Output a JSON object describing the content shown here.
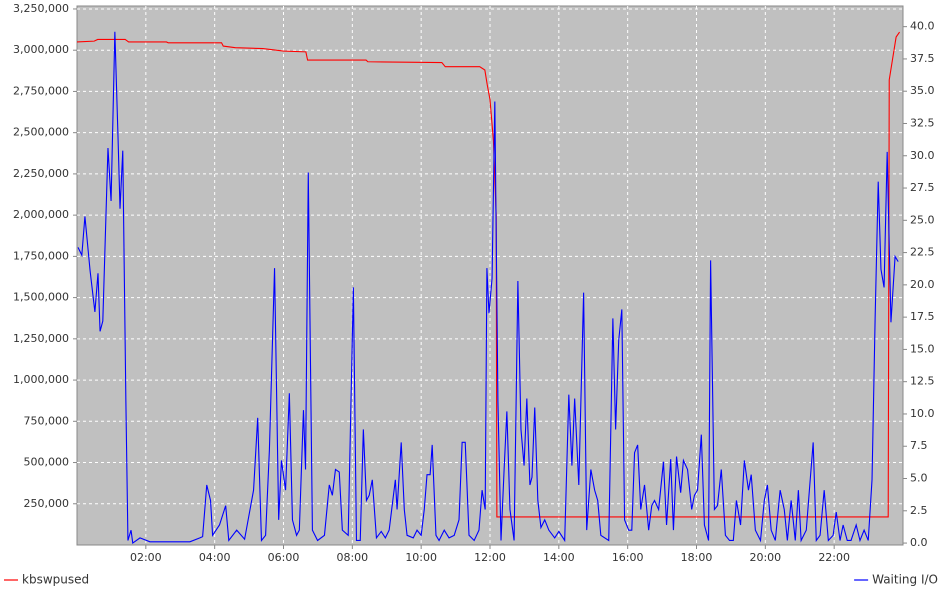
{
  "chart_data": {
    "type": "line",
    "legend": "bottom",
    "grid": true,
    "background": "#c0c0c0",
    "xlim": [
      0,
      24
    ],
    "xticks": [
      {
        "value": 2,
        "label": "02:00"
      },
      {
        "value": 4,
        "label": "04:00"
      },
      {
        "value": 6,
        "label": "06:00"
      },
      {
        "value": 8,
        "label": "08:00"
      },
      {
        "value": 10,
        "label": "10:00"
      },
      {
        "value": 12,
        "label": "12:00"
      },
      {
        "value": 14,
        "label": "14:00"
      },
      {
        "value": 16,
        "label": "16:00"
      },
      {
        "value": 18,
        "label": "18:00"
      },
      {
        "value": 20,
        "label": "20:00"
      },
      {
        "value": 22,
        "label": "22:00"
      }
    ],
    "ylim": [
      0,
      3268000
    ],
    "yticks": [
      {
        "value": 250000,
        "label": "250,000"
      },
      {
        "value": 500000,
        "label": "500,000"
      },
      {
        "value": 750000,
        "label": "750,000"
      },
      {
        "value": 1000000,
        "label": "1,000,000"
      },
      {
        "value": 1250000,
        "label": "1,250,000"
      },
      {
        "value": 1500000,
        "label": "1,500,000"
      },
      {
        "value": 1750000,
        "label": "1,750,000"
      },
      {
        "value": 2000000,
        "label": "2,000,000"
      },
      {
        "value": 2250000,
        "label": "2,250,000"
      },
      {
        "value": 2500000,
        "label": "2,500,000"
      },
      {
        "value": 2750000,
        "label": "2,750,000"
      },
      {
        "value": 3000000,
        "label": "3,000,000"
      },
      {
        "value": 3250000,
        "label": "3,250,000"
      }
    ],
    "y2lim": [
      -0.15,
      41.6
    ],
    "y2ticks": [
      {
        "value": 0,
        "label": "0.0"
      },
      {
        "value": 2.5,
        "label": "2.5"
      },
      {
        "value": 5,
        "label": "5.0"
      },
      {
        "value": 7.5,
        "label": "7.5"
      },
      {
        "value": 10,
        "label": "10.0"
      },
      {
        "value": 12.5,
        "label": "12.5"
      },
      {
        "value": 15,
        "label": "15.0"
      },
      {
        "value": 17.5,
        "label": "17.5"
      },
      {
        "value": 20,
        "label": "20.0"
      },
      {
        "value": 22.5,
        "label": "22.5"
      },
      {
        "value": 25,
        "label": "25.0"
      },
      {
        "value": 27.5,
        "label": "27.5"
      },
      {
        "value": 30,
        "label": "30.0"
      },
      {
        "value": 32.5,
        "label": "32.5"
      },
      {
        "value": 35,
        "label": "35.0"
      },
      {
        "value": 37.5,
        "label": "37.5"
      },
      {
        "value": 40,
        "label": "40.0"
      }
    ],
    "series": [
      {
        "name": "kbswpused",
        "color": "#ff0000",
        "x": [
          0.0,
          0.5,
          0.6,
          1.4,
          1.5,
          2.6,
          2.65,
          4.2,
          4.25,
          4.6,
          5.4,
          6.0,
          6.65,
          6.7,
          8.4,
          8.45,
          10.6,
          10.7,
          11.7,
          11.85,
          11.92,
          12.0,
          12.1,
          12.18,
          12.2,
          23.57,
          23.6,
          23.7,
          23.8,
          23.9
        ],
        "values": [
          3050000,
          3055000,
          3065000,
          3065000,
          3050000,
          3050000,
          3045000,
          3045000,
          3025000,
          3015000,
          3010000,
          2995000,
          2990000,
          2940000,
          2940000,
          2930000,
          2925000,
          2900000,
          2900000,
          2880000,
          2790000,
          2700000,
          2450000,
          2000000,
          170000,
          170000,
          2820000,
          2950000,
          3080000,
          3110000
        ]
      },
      {
        "name": "Waiting I/O",
        "color": "#0000ff",
        "axis": "y2",
        "x": [
          0.03,
          0.14,
          0.23,
          0.38,
          0.52,
          0.61,
          0.67,
          0.75,
          0.9,
          0.99,
          1.1,
          1.19,
          1.25,
          1.33,
          1.42,
          1.48,
          1.57,
          1.62,
          1.83,
          2.12,
          2.7,
          3.28,
          3.57,
          3.65,
          3.77,
          3.88,
          3.94,
          4.14,
          4.32,
          4.41,
          4.64,
          4.87,
          5.13,
          5.25,
          5.36,
          5.48,
          5.59,
          5.74,
          5.86,
          5.94,
          6.06,
          6.17,
          6.26,
          6.38,
          6.46,
          6.58,
          6.64,
          6.72,
          6.84,
          6.99,
          7.19,
          7.33,
          7.42,
          7.51,
          7.62,
          7.71,
          7.88,
          8.03,
          8.12,
          8.23,
          8.32,
          8.41,
          8.49,
          8.58,
          8.7,
          8.84,
          8.96,
          9.07,
          9.25,
          9.3,
          9.42,
          9.51,
          9.59,
          9.77,
          9.88,
          10.0,
          10.09,
          10.17,
          10.26,
          10.32,
          10.43,
          10.52,
          10.67,
          10.81,
          10.96,
          11.1,
          11.19,
          11.28,
          11.39,
          11.54,
          11.68,
          11.77,
          11.86,
          11.91,
          11.97,
          12.06,
          12.14,
          12.23,
          12.32,
          12.41,
          12.49,
          12.58,
          12.7,
          12.81,
          12.9,
          12.99,
          13.07,
          13.16,
          13.22,
          13.3,
          13.39,
          13.48,
          13.59,
          13.71,
          13.88,
          14.0,
          14.17,
          14.29,
          14.38,
          14.46,
          14.58,
          14.72,
          14.81,
          14.93,
          15.04,
          15.13,
          15.22,
          15.45,
          15.57,
          15.65,
          15.74,
          15.83,
          15.91,
          16.03,
          16.12,
          16.2,
          16.29,
          16.38,
          16.49,
          16.61,
          16.7,
          16.78,
          16.9,
          17.04,
          17.13,
          17.25,
          17.33,
          17.42,
          17.54,
          17.62,
          17.74,
          17.86,
          17.94,
          18.03,
          18.14,
          18.23,
          18.35,
          18.41,
          18.52,
          18.61,
          18.72,
          18.84,
          18.96,
          19.07,
          19.16,
          19.28,
          19.39,
          19.51,
          19.59,
          19.71,
          19.86,
          19.97,
          20.06,
          20.17,
          20.29,
          20.43,
          20.55,
          20.64,
          20.75,
          20.87,
          20.96,
          21.04,
          21.19,
          21.28,
          21.39,
          21.48,
          21.59,
          21.71,
          21.83,
          21.97,
          22.06,
          22.17,
          22.26,
          22.38,
          22.49,
          22.64,
          22.75,
          22.87,
          22.99,
          23.1,
          23.19,
          23.28,
          23.36,
          23.45,
          23.54,
          23.65,
          23.77,
          23.86
        ],
        "values": [
          22.9,
          22.3,
          25.3,
          21.1,
          17.9,
          20.9,
          16.4,
          17.2,
          30.6,
          26.5,
          39.6,
          31.6,
          25.9,
          30.4,
          11.0,
          0.2,
          1.0,
          0,
          0.4,
          0.1,
          0.1,
          0.1,
          0.4,
          0.5,
          4.5,
          3.3,
          0.6,
          1.4,
          2.9,
          0.2,
          1.0,
          0.3,
          4.1,
          9.7,
          0.2,
          0.6,
          7.2,
          21.3,
          1.8,
          6.4,
          4.1,
          11.6,
          1.8,
          0.6,
          1.0,
          10.3,
          5.7,
          28.7,
          1.0,
          0.2,
          0.6,
          4.5,
          3.7,
          5.7,
          5.5,
          1.0,
          0.6,
          19.8,
          0.2,
          0.2,
          8.8,
          3.3,
          3.7,
          4.9,
          0.4,
          0.9,
          0.4,
          1.0,
          4.9,
          2.6,
          7.8,
          2.6,
          0.6,
          0.4,
          1.0,
          0.6,
          2.6,
          5.3,
          5.3,
          7.6,
          0.6,
          0.2,
          1.0,
          0.4,
          0.6,
          1.8,
          7.8,
          7.8,
          0.6,
          0.2,
          1.0,
          4.1,
          2.6,
          21.3,
          17.8,
          20.5,
          34.2,
          11.0,
          0.2,
          5.7,
          10.2,
          2.6,
          0.2,
          20.3,
          8.8,
          6.0,
          11.2,
          4.5,
          5.1,
          10.5,
          3.3,
          1.2,
          1.8,
          1.0,
          0.4,
          0.9,
          0.2,
          11.5,
          6.0,
          11.2,
          4.5,
          19.4,
          1.0,
          5.7,
          4.1,
          3.3,
          0.6,
          0.2,
          17.4,
          8.8,
          15.7,
          18.1,
          1.8,
          1.0,
          1.0,
          7.0,
          7.6,
          2.6,
          4.5,
          1.0,
          2.9,
          3.3,
          2.6,
          6.3,
          1.4,
          6.5,
          1.0,
          6.7,
          3.9,
          6.4,
          5.7,
          2.6,
          3.7,
          4.1,
          8.4,
          1.4,
          0.2,
          21.9,
          2.6,
          2.9,
          5.7,
          0.6,
          0.2,
          0.2,
          3.3,
          1.4,
          6.4,
          4.1,
          5.3,
          1.0,
          0.2,
          3.3,
          4.5,
          1.0,
          0.2,
          4.1,
          2.6,
          0.2,
          3.3,
          0.2,
          4.1,
          0.2,
          1.0,
          4.1,
          7.8,
          0.2,
          0.6,
          4.1,
          0.2,
          0.6,
          2.4,
          0.2,
          1.4,
          0.2,
          0.2,
          1.4,
          0.2,
          1.0,
          0.2,
          4.9,
          17.4,
          28.0,
          21.2,
          19.8,
          30.3,
          17.1,
          22.2,
          21.8
        ]
      }
    ]
  }
}
